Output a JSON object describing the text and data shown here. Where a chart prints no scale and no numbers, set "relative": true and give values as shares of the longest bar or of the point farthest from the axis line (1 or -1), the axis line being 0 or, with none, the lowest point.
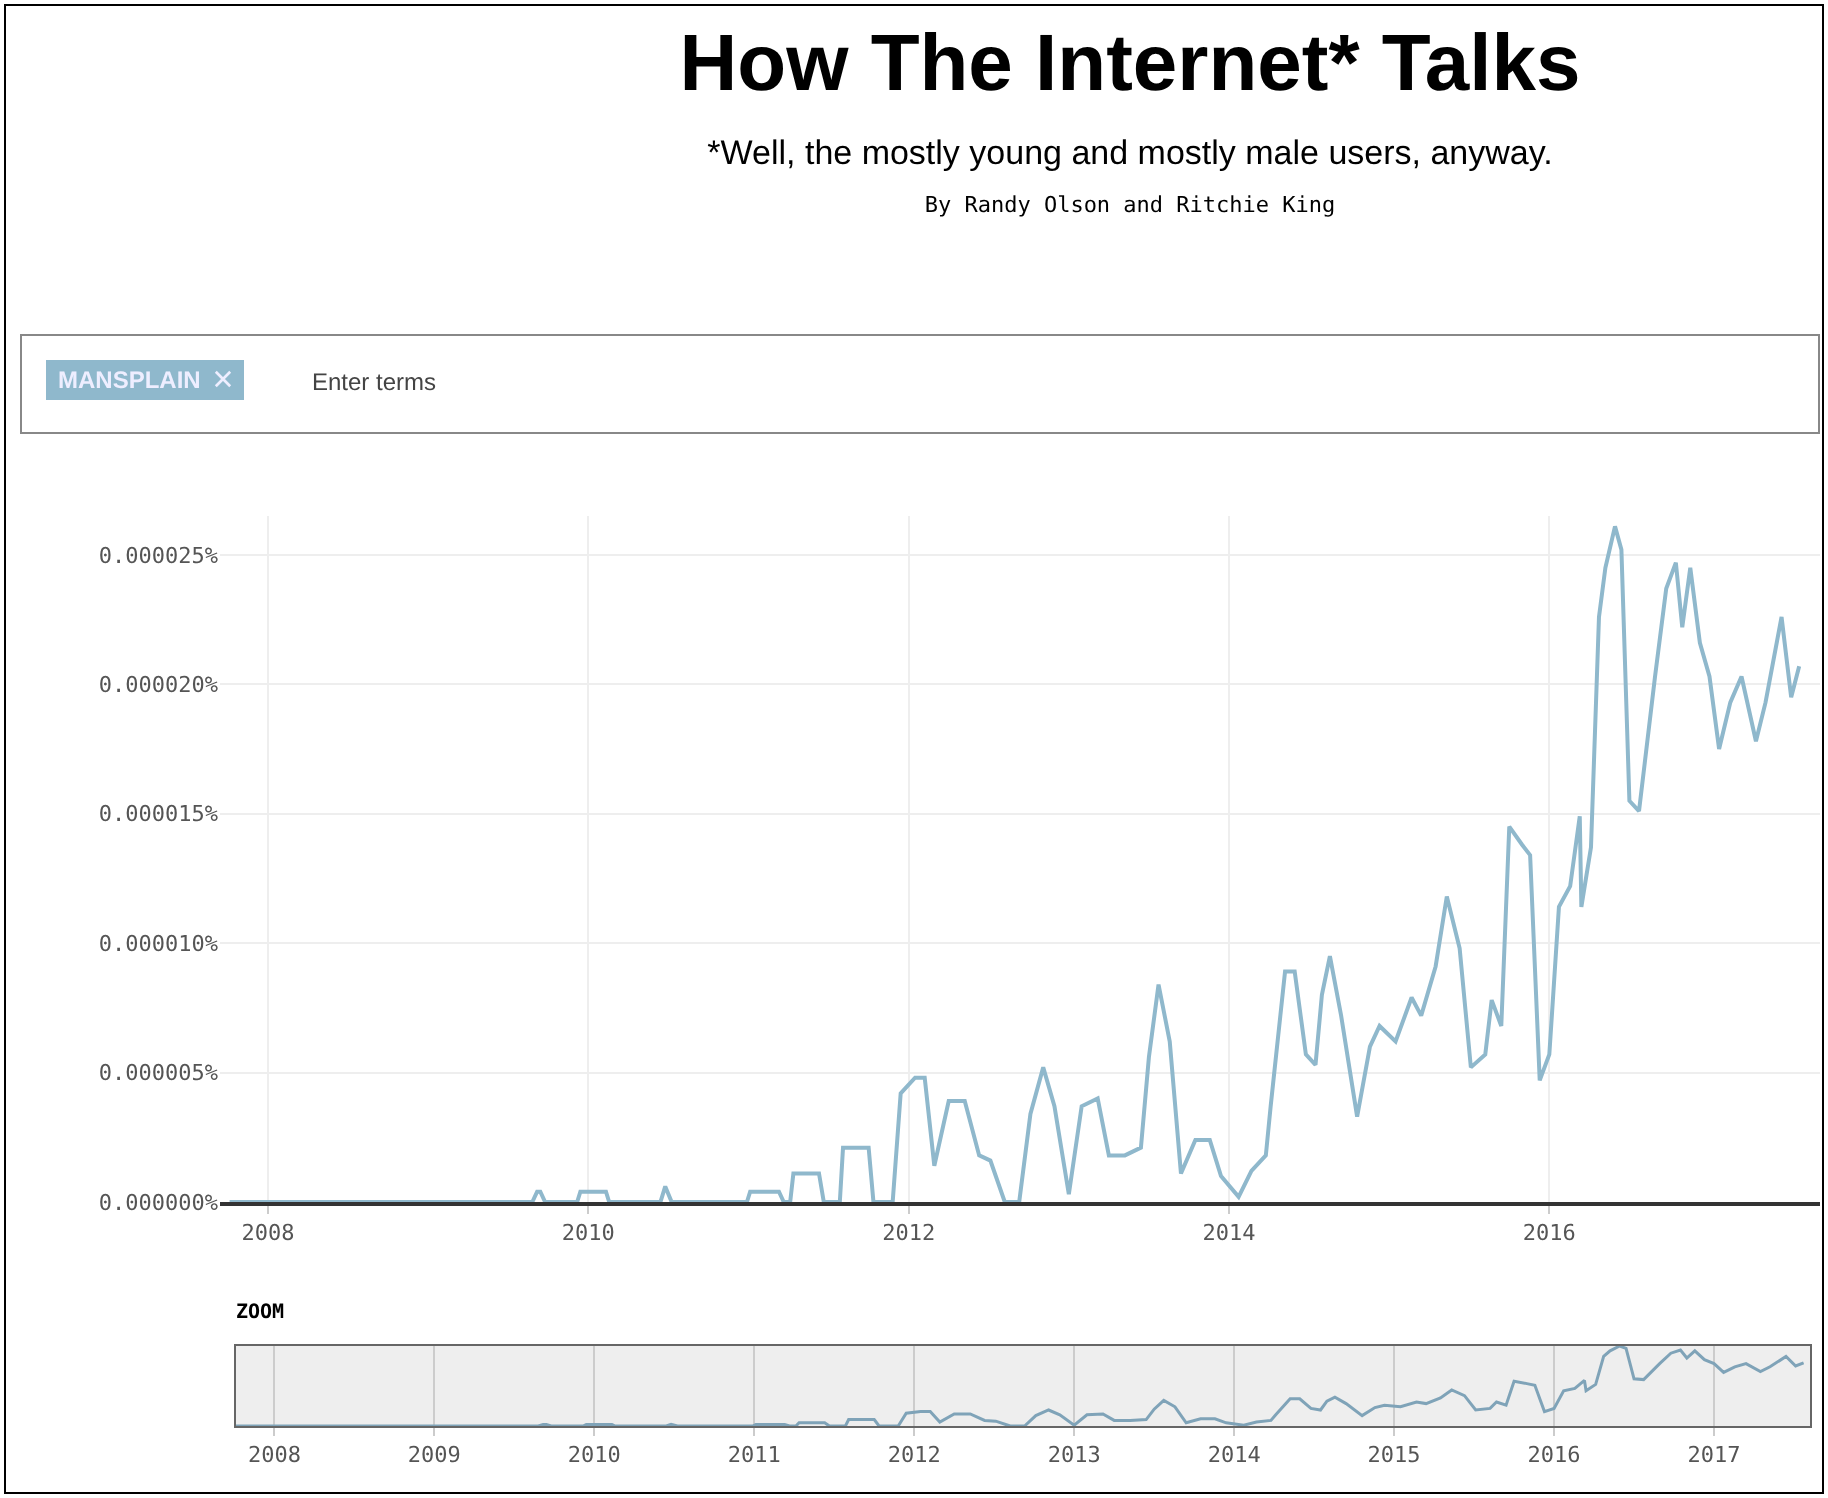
{
  "chart_data": [
    {
      "type": "line",
      "title": "How The Internet* Talks",
      "subtitle": "*Well, the mostly young and mostly male users, anyway.",
      "annotations": [
        "By Randy Olson and Ritchie King",
        "Enter terms"
      ],
      "x": [
        2007.76,
        2009.65,
        2009.68,
        2009.7,
        2009.73,
        2009.93,
        2009.95,
        2010.11,
        2010.13,
        2010.45,
        2010.48,
        2010.52,
        2010.99,
        2011.01,
        2011.19,
        2011.22,
        2011.26,
        2011.28,
        2011.44,
        2011.47,
        2011.57,
        2011.59,
        2011.75,
        2011.78,
        2011.9,
        2011.95,
        2012.04,
        2012.1,
        2012.16,
        2012.25,
        2012.35,
        2012.44,
        2012.51,
        2012.6,
        2012.69,
        2012.76,
        2012.84,
        2012.91,
        2013.0,
        2013.08,
        2013.18,
        2013.25,
        2013.35,
        2013.45,
        2013.5,
        2013.56,
        2013.63,
        2013.7,
        2013.79,
        2013.88,
        2013.95,
        2014.06,
        2014.14,
        2014.23,
        2014.26,
        2014.35,
        2014.41,
        2014.48,
        2014.54,
        2014.58,
        2014.63,
        2014.7,
        2014.8,
        2014.88,
        2014.94,
        2015.04,
        2015.14,
        2015.2,
        2015.29,
        2015.36,
        2015.44,
        2015.51,
        2015.6,
        2015.64,
        2015.7,
        2015.75,
        2015.83,
        2015.88,
        2015.94,
        2016.0,
        2016.06,
        2016.13,
        2016.19,
        2016.2,
        2016.26,
        2016.31,
        2016.35,
        2016.41,
        2016.45,
        2016.5,
        2016.56,
        2016.66,
        2016.73,
        2016.79,
        2016.83,
        2016.88,
        2016.94,
        2017.0,
        2017.06,
        2017.13,
        2017.2,
        2017.29,
        2017.35,
        2017.45,
        2017.51,
        2017.56
      ],
      "series": [
        {
          "name": "MANSPLAIN",
          "color": "#8fb8cc",
          "values": [
            0,
            0,
            4e-07,
            4e-07,
            0,
            0,
            4e-07,
            4e-07,
            0,
            0,
            6e-07,
            0,
            0,
            4e-07,
            4e-07,
            0,
            0,
            1.1e-06,
            1.1e-06,
            0,
            0,
            2.1e-06,
            2.1e-06,
            0,
            0,
            4.2e-06,
            4.8e-06,
            4.8e-06,
            1.4e-06,
            3.9e-06,
            3.9e-06,
            1.8e-06,
            1.6e-06,
            0,
            0,
            3.4e-06,
            5.2e-06,
            3.7e-06,
            3e-07,
            3.7e-06,
            4e-06,
            1.8e-06,
            1.8e-06,
            2.1e-06,
            5.6e-06,
            8.4e-06,
            6.2e-06,
            1.1e-06,
            2.4e-06,
            2.4e-06,
            1e-06,
            2e-07,
            1.2e-06,
            1.8e-06,
            3.7e-06,
            8.9e-06,
            8.9e-06,
            5.7e-06,
            5.3e-06,
            8e-06,
            9.5e-06,
            7.2e-06,
            3.3e-06,
            6e-06,
            6.8e-06,
            6.2e-06,
            7.9e-06,
            7.2e-06,
            9.1e-06,
            1.18e-05,
            9.8e-06,
            5.2e-06,
            5.7e-06,
            7.8e-06,
            6.8e-06,
            1.45e-05,
            1.38e-05,
            1.34e-05,
            4.7e-06,
            5.7e-06,
            1.14e-05,
            1.22e-05,
            1.49e-05,
            1.14e-05,
            1.37e-05,
            2.26e-05,
            2.45e-05,
            2.61e-05,
            2.52e-05,
            1.55e-05,
            1.51e-05,
            2.03e-05,
            2.37e-05,
            2.47e-05,
            2.22e-05,
            2.45e-05,
            2.16e-05,
            2.03e-05,
            1.75e-05,
            1.93e-05,
            2.03e-05,
            1.78e-05,
            1.93e-05,
            2.26e-05,
            1.95e-05,
            2.07e-05
          ]
        }
      ],
      "xlim": [
        2007.7,
        2017.69
      ],
      "xticks": [
        2008,
        2010,
        2012,
        2014,
        2016
      ],
      "ylim": [
        0,
        2.65e-05
      ],
      "yticks": [
        {
          "value": 0,
          "label": "0.000000%"
        },
        {
          "value": 5e-06,
          "label": "0.000005%"
        },
        {
          "value": 1e-05,
          "label": "0.000010%"
        },
        {
          "value": 1.5e-05,
          "label": "0.000015%"
        },
        {
          "value": 2e-05,
          "label": "0.000020%"
        },
        {
          "value": 2.5e-05,
          "label": "0.000025%"
        }
      ],
      "grid": true,
      "line_style": "solid",
      "marker": "none"
    },
    {
      "type": "line",
      "title": "ZOOM",
      "x": [
        2007.76,
        2009.65,
        2009.68,
        2009.7,
        2009.73,
        2009.93,
        2009.95,
        2010.11,
        2010.13,
        2010.45,
        2010.48,
        2010.52,
        2010.99,
        2011.01,
        2011.19,
        2011.22,
        2011.26,
        2011.28,
        2011.44,
        2011.47,
        2011.57,
        2011.59,
        2011.75,
        2011.78,
        2011.9,
        2011.95,
        2012.04,
        2012.1,
        2012.16,
        2012.25,
        2012.35,
        2012.44,
        2012.51,
        2012.6,
        2012.69,
        2012.76,
        2012.84,
        2012.91,
        2013.0,
        2013.08,
        2013.18,
        2013.25,
        2013.35,
        2013.45,
        2013.5,
        2013.56,
        2013.63,
        2013.7,
        2013.79,
        2013.88,
        2013.95,
        2014.06,
        2014.14,
        2014.23,
        2014.26,
        2014.35,
        2014.41,
        2014.48,
        2014.54,
        2014.58,
        2014.63,
        2014.7,
        2014.8,
        2014.88,
        2014.94,
        2015.04,
        2015.14,
        2015.2,
        2015.29,
        2015.36,
        2015.44,
        2015.51,
        2015.6,
        2015.64,
        2015.7,
        2015.75,
        2015.83,
        2015.88,
        2015.94,
        2016.0,
        2016.06,
        2016.13,
        2016.19,
        2016.2,
        2016.26,
        2016.31,
        2016.35,
        2016.41,
        2016.45,
        2016.5,
        2016.56,
        2016.66,
        2016.73,
        2016.79,
        2016.83,
        2016.88,
        2016.94,
        2017.0,
        2017.06,
        2017.13,
        2017.2,
        2017.29,
        2017.35,
        2017.45,
        2017.51,
        2017.56
      ],
      "series": [
        {
          "color": "#7fa3b8",
          "values": [
            0,
            0,
            0.02,
            0.02,
            0,
            0,
            0.02,
            0.02,
            0,
            0,
            0.02,
            0,
            0,
            0.02,
            0.02,
            0,
            0,
            0.04,
            0.04,
            0,
            0,
            0.08,
            0.08,
            0,
            0,
            0.16,
            0.18,
            0.18,
            0.05,
            0.15,
            0.15,
            0.07,
            0.06,
            0,
            0,
            0.13,
            0.2,
            0.14,
            0.01,
            0.14,
            0.15,
            0.07,
            0.07,
            0.08,
            0.21,
            0.32,
            0.24,
            0.04,
            0.09,
            0.09,
            0.04,
            0.01,
            0.05,
            0.07,
            0.14,
            0.34,
            0.34,
            0.22,
            0.2,
            0.31,
            0.36,
            0.28,
            0.13,
            0.23,
            0.26,
            0.24,
            0.3,
            0.28,
            0.35,
            0.45,
            0.38,
            0.2,
            0.22,
            0.3,
            0.26,
            0.56,
            0.53,
            0.51,
            0.18,
            0.22,
            0.44,
            0.47,
            0.57,
            0.44,
            0.52,
            0.87,
            0.94,
            1,
            0.97,
            0.59,
            0.58,
            0.78,
            0.91,
            0.95,
            0.85,
            0.94,
            0.83,
            0.78,
            0.67,
            0.74,
            0.78,
            0.68,
            0.74,
            0.87,
            0.75,
            0.79
          ]
        }
      ],
      "xlim": [
        2007.76,
        2017.6
      ],
      "xticks": [
        2008,
        2009,
        2010,
        2011,
        2012,
        2013,
        2014,
        2015,
        2016,
        2017
      ],
      "relative": true,
      "tick_labels": "x",
      "grid": "x",
      "line_style": "solid",
      "marker": "none"
    }
  ]
}
